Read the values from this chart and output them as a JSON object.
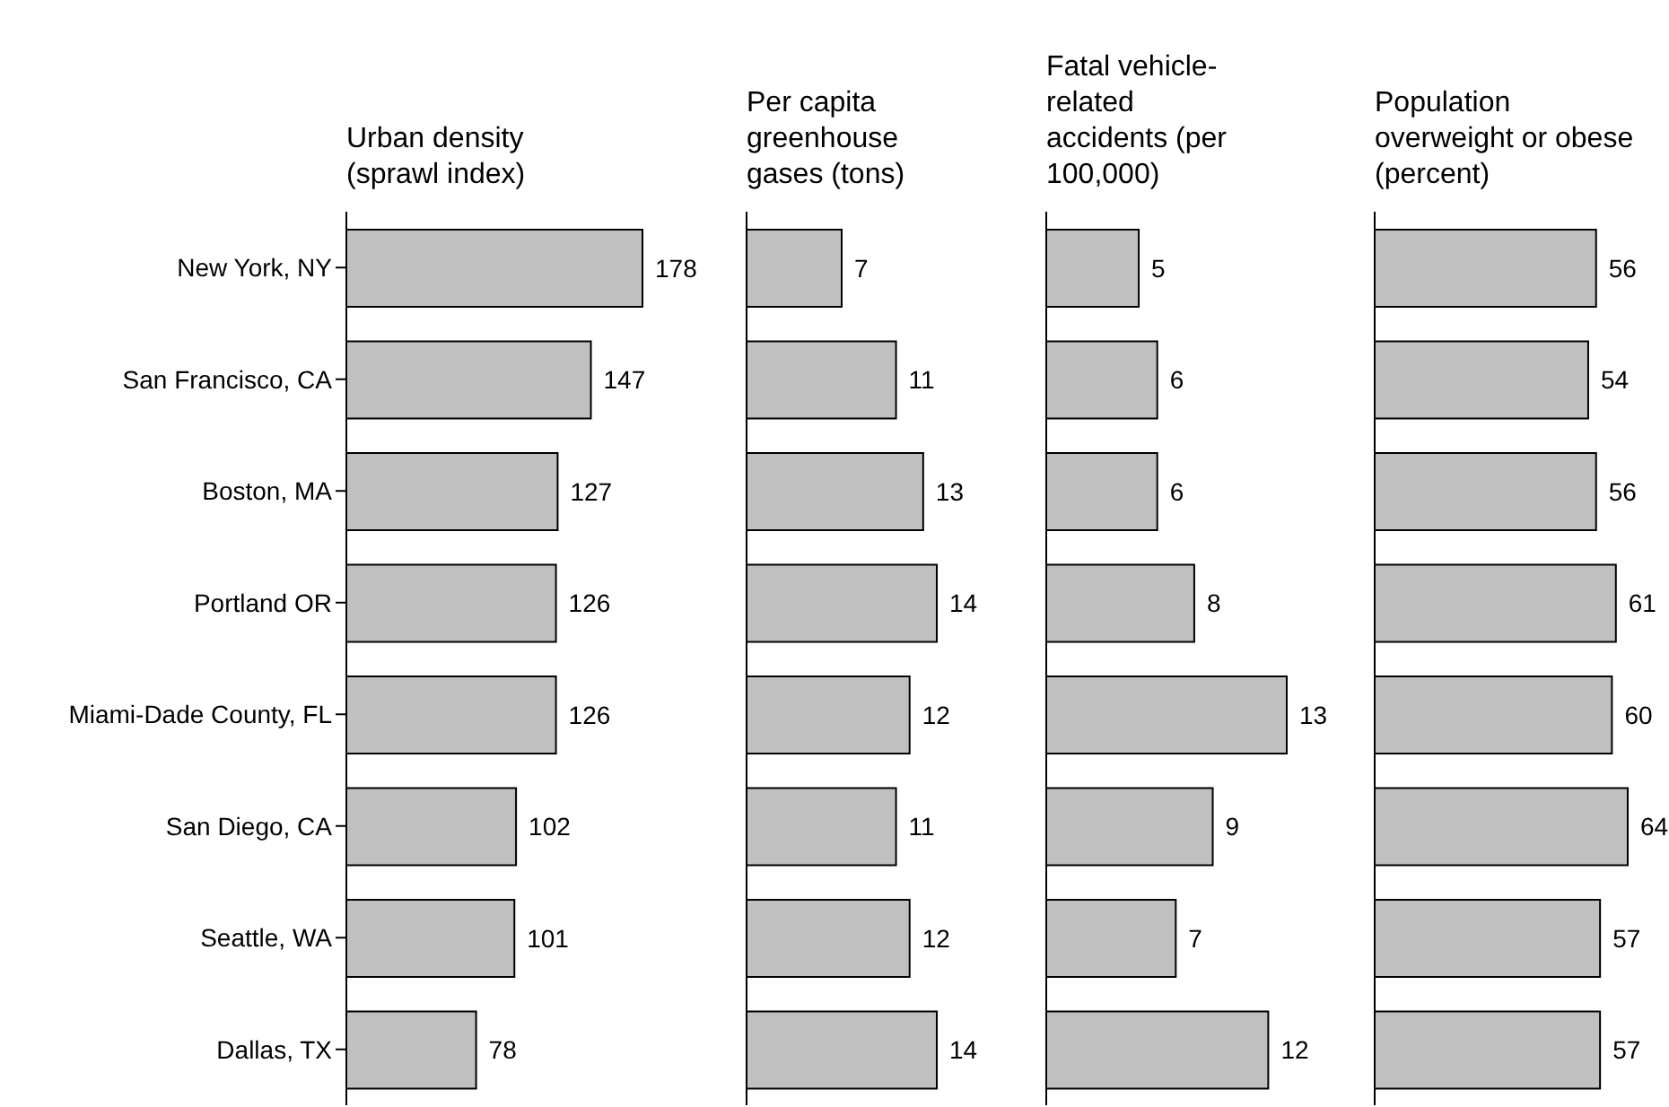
{
  "chart_data": [
    {
      "type": "bar",
      "orientation": "horizontal",
      "title": "Urban density (sprawl index)",
      "categories": [
        "New York, NY",
        "San Francisco, CA",
        "Boston, MA",
        "Portland OR",
        "Miami-Dade County, FL",
        "San Diego, CA",
        "Seattle, WA",
        "Dallas, TX"
      ],
      "values": [
        178,
        147,
        127,
        126,
        126,
        102,
        101,
        78
      ],
      "color": "#c0c0c0",
      "data_labels": true,
      "tick_labels": "y"
    },
    {
      "type": "bar",
      "orientation": "horizontal",
      "title": "Per capita greenhouse gases (tons)",
      "values": [
        7,
        11,
        13,
        14,
        12,
        11,
        12,
        14
      ],
      "color": "#c0c0c0",
      "data_labels": true,
      "tick_labels": false
    },
    {
      "type": "bar",
      "orientation": "horizontal",
      "title": "Fatal vehicle-related accidents (per 100,000)",
      "values": [
        5,
        6,
        6,
        8,
        13,
        9,
        7,
        12
      ],
      "color": "#c0c0c0",
      "data_labels": true,
      "tick_labels": false
    },
    {
      "type": "bar",
      "orientation": "horizontal",
      "title": "Population overweight or obese (percent)",
      "values": [
        56,
        54,
        56,
        61,
        60,
        64,
        57,
        57
      ],
      "color": "#c0c0c0",
      "data_labels": true,
      "tick_labels": false
    }
  ]
}
